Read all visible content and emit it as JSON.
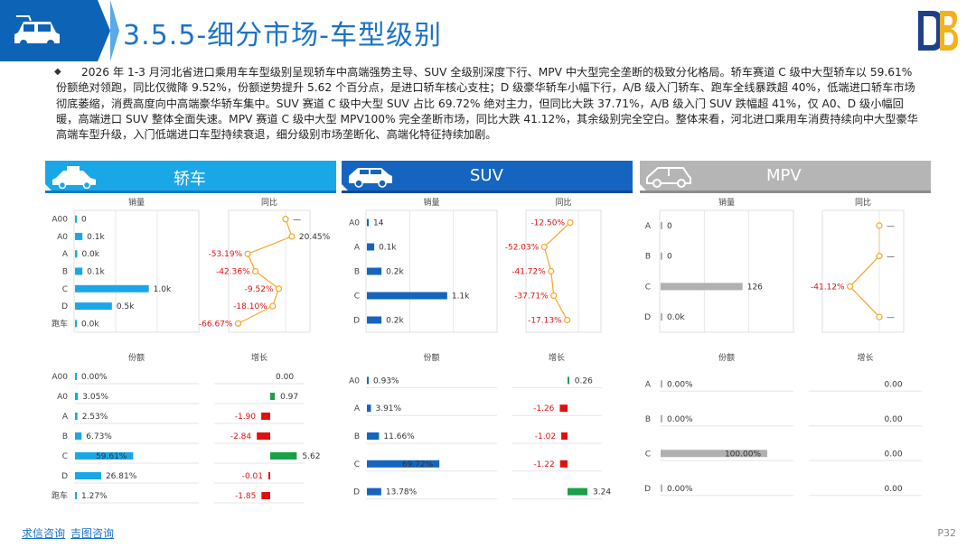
{
  "header": {
    "title": "3.5.5-细分市场-车型级别"
  },
  "intro": "2026 年 1-3 月河北省进口乘用车车型级别呈现轿车中高端强势主导、SUV 全级别深度下行、MPV 中大型完全垄断的极致分化格局。轿车赛道 C 级中大型轿车以 59.61% 份额绝对领跑，同比仅微降 9.52%，份额逆势提升 5.62 个百分点，是进口轿车核心支柱；D 级豪华轿车小幅下行，A/B 级入门轿车、跑车全线暴跌超 40%，低端进口轿车市场彻底萎缩，消费高度向中高端豪华轿车集中。SUV 赛道 C 级中大型 SUV 占比 69.72% 绝对主力，但同比大跌 37.71%，A/B 级入门 SUV 跌幅超 41%，仅 A0、D 级小幅回暖，高端进口 SUV 整体全面失速。MPV 赛道 C 级中大型 MPV100% 完全垄断市场，同比大跌 41.12%，其余级别完全空白。整体来看，河北进口乘用车消费持续向中大型豪华高端车型升级，入门低端进口车型持续衰退，细分级别市场垄断化、高端化特征持续加剧。",
  "colors": {
    "sedan": "#1aa7e8",
    "suv": "#1565c0",
    "mpv": "#b0b0b0",
    "pos": "#1aa047",
    "neg": "#e01010",
    "yoy_line": "#f5a623"
  },
  "panel_labels": {
    "sales": "销量",
    "yoy": "同比",
    "share": "份额",
    "growth": "增长"
  },
  "chart_data": [
    {
      "type": "bar",
      "name": "轿车",
      "categories": [
        "A00",
        "A0",
        "A",
        "B",
        "C",
        "D",
        "跑车"
      ],
      "sales_label": [
        "0",
        "0.1k",
        "0.0k",
        "0.1k",
        "1.0k",
        "0.5k",
        "0.0k"
      ],
      "sales": [
        0.0,
        0.1,
        0.03,
        0.1,
        1.0,
        0.5,
        0.02
      ],
      "yoy_label": [
        "—",
        "20.45%",
        "-53.19%",
        "-42.36%",
        "-9.52%",
        "-18.10%",
        "-66.67%"
      ],
      "yoy": [
        null,
        20.45,
        -53.19,
        -42.36,
        -9.52,
        -18.1,
        -66.67
      ],
      "share_label": [
        "0.00%",
        "3.05%",
        "2.53%",
        "6.73%",
        "59.61%",
        "26.81%",
        "1.27%"
      ],
      "share": [
        0.0,
        3.05,
        2.53,
        6.73,
        59.61,
        26.81,
        1.27
      ],
      "growth_label": [
        "0.00",
        "0.97",
        "-1.90",
        "-2.84",
        "5.62",
        "-0.01",
        "-1.85"
      ],
      "growth": [
        0.0,
        0.97,
        -1.9,
        -2.84,
        5.62,
        -0.01,
        -1.85
      ]
    },
    {
      "type": "bar",
      "name": "SUV",
      "categories": [
        "A0",
        "A",
        "B",
        "C",
        "D"
      ],
      "sales_label": [
        "14",
        "0.1k",
        "0.2k",
        "1.1k",
        "0.2k"
      ],
      "sales": [
        0.014,
        0.1,
        0.2,
        1.1,
        0.2
      ],
      "yoy_label": [
        "-12.50%",
        "-52.03%",
        "-41.72%",
        "-37.71%",
        "-17.13%"
      ],
      "yoy": [
        -12.5,
        -52.03,
        -41.72,
        -37.71,
        -17.13
      ],
      "share_label": [
        "0.93%",
        "3.91%",
        "11.66%",
        "69.72%",
        "13.78%"
      ],
      "share": [
        0.93,
        3.91,
        11.66,
        69.72,
        13.78
      ],
      "growth_label": [
        "0.26",
        "-1.26",
        "-1.02",
        "-1.22",
        "3.24"
      ],
      "growth": [
        0.26,
        -1.26,
        -1.02,
        -1.22,
        3.24
      ]
    },
    {
      "type": "bar",
      "name": "MPV",
      "categories": [
        "A",
        "B",
        "C",
        "D"
      ],
      "sales_label": [
        "0",
        "0",
        "126",
        "0.0k"
      ],
      "sales": [
        0,
        0,
        126,
        0
      ],
      "yoy_label": [
        "—",
        "—",
        "-41.12%",
        "—"
      ],
      "yoy": [
        null,
        null,
        -41.12,
        null
      ],
      "share_label": [
        "0.00%",
        "0.00%",
        "100.00%",
        "0.00%"
      ],
      "share": [
        0.0,
        0.0,
        100.0,
        0.0
      ],
      "growth_label": [
        "0.00",
        "0.00",
        "0.00",
        "0.00"
      ],
      "growth": [
        0.0,
        0.0,
        0.0,
        0.0
      ]
    }
  ],
  "footer": {
    "link1": "求信咨询",
    "link2": "吉图咨询",
    "page": "P32"
  }
}
